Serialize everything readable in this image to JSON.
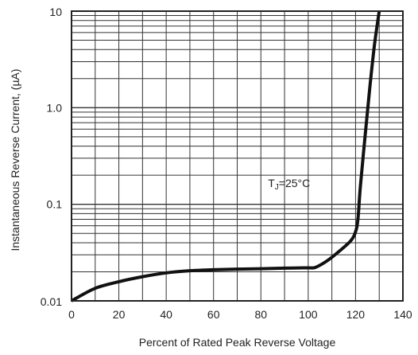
{
  "chart_data": {
    "type": "line",
    "title": "",
    "xlabel": "Percent of Rated Peak Reverse Voltage",
    "ylabel": "Instantaneous Reverse Current, (µA)",
    "xlim": [
      0,
      140
    ],
    "ylim": [
      0.01,
      10
    ],
    "y_scale": "log",
    "grid": true,
    "x_ticks": [
      0,
      20,
      40,
      60,
      80,
      100,
      120,
      140
    ],
    "x_tick_labels": [
      "0",
      "20",
      "40",
      "60",
      "80",
      "100",
      "120",
      "140"
    ],
    "y_ticks": [
      0.01,
      0.1,
      1.0,
      10
    ],
    "y_tick_labels": [
      "0.01",
      "0.1",
      "1.0",
      "10"
    ],
    "annotation": {
      "text_main": "T",
      "text_sub": "J",
      "text_rest": "=25°C",
      "x": 83,
      "y": 0.12
    },
    "series": [
      {
        "name": "",
        "color": "#111111",
        "x": [
          0,
          10,
          20,
          30,
          40,
          50,
          60,
          70,
          80,
          90,
          100,
          103,
          108,
          113,
          118,
          120,
          121,
          122,
          124,
          126,
          128,
          130
        ],
        "y": [
          0.01,
          0.0135,
          0.0158,
          0.0178,
          0.0195,
          0.0205,
          0.021,
          0.0213,
          0.0215,
          0.0218,
          0.022,
          0.0222,
          0.026,
          0.0325,
          0.042,
          0.052,
          0.07,
          0.15,
          0.5,
          1.6,
          4.5,
          10
        ]
      }
    ]
  }
}
